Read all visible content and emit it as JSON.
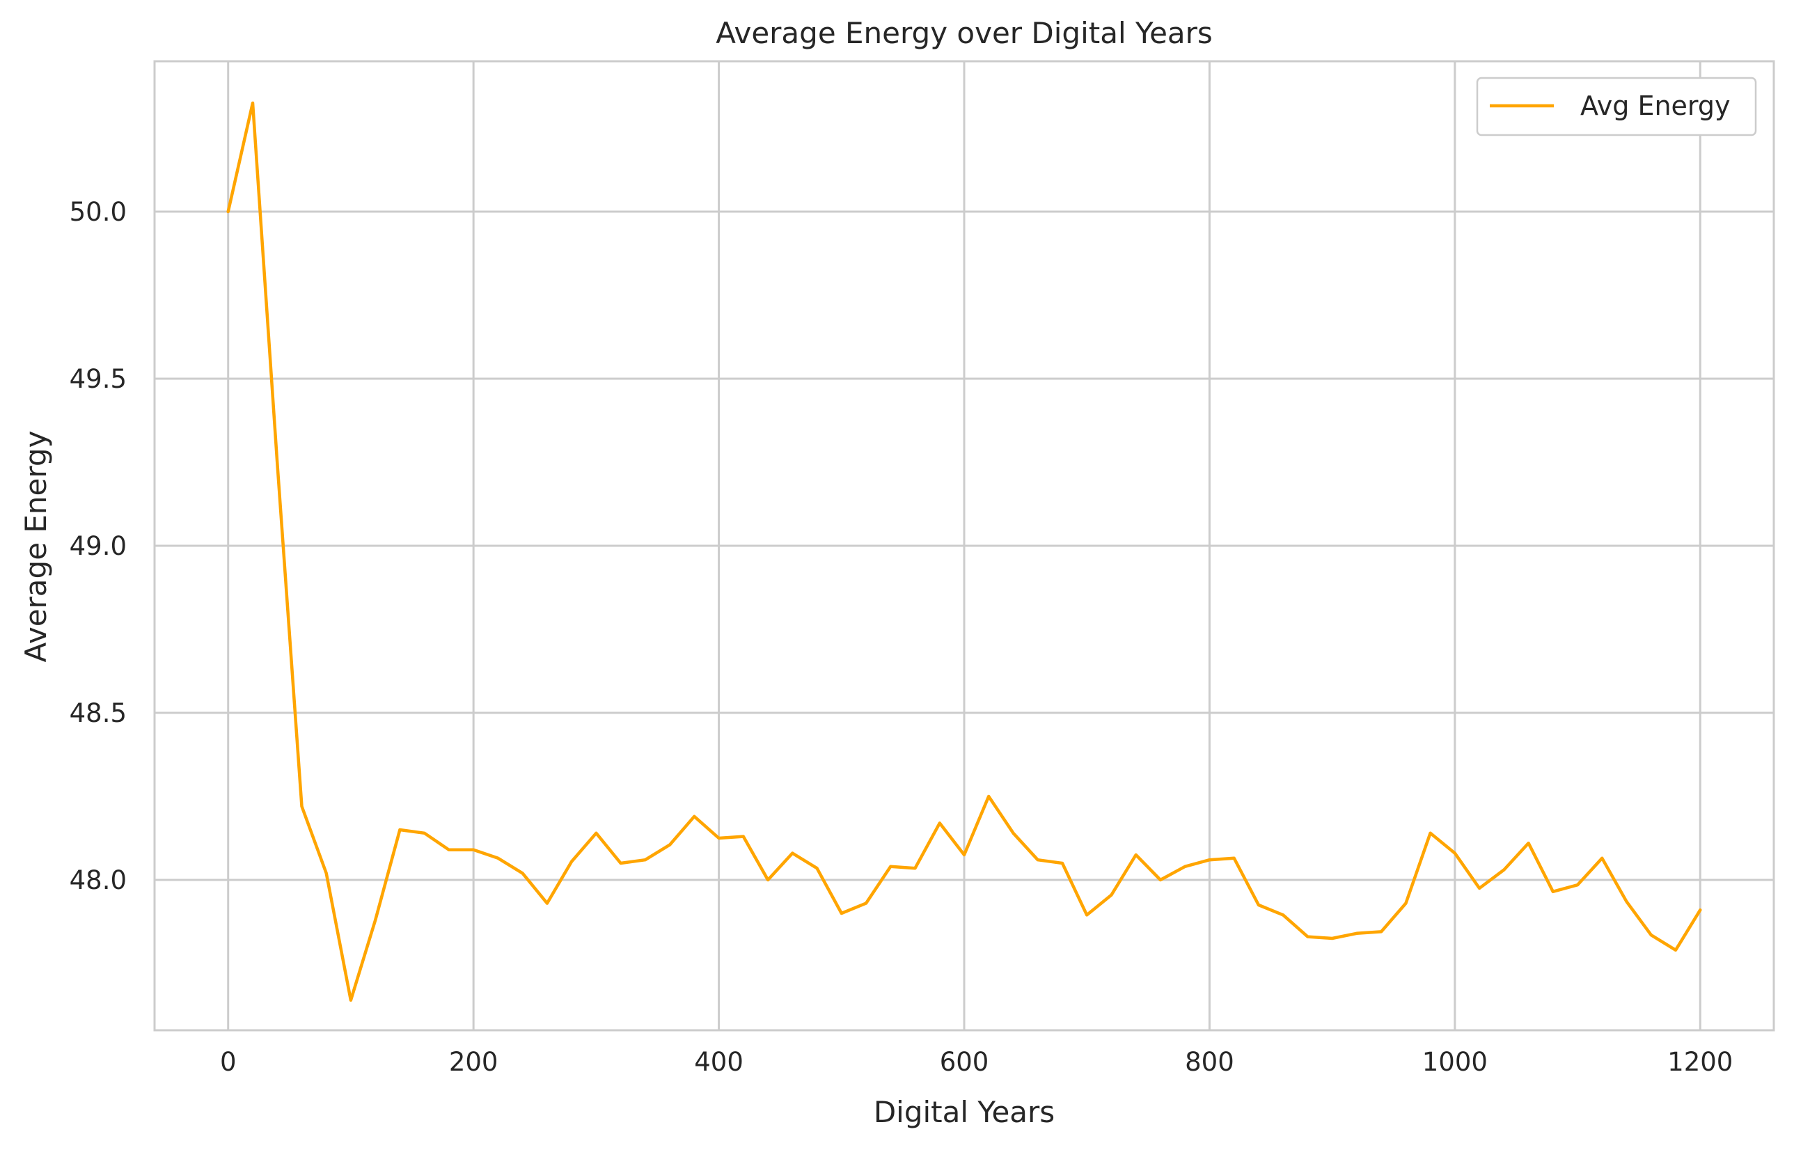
{
  "chart_data": {
    "type": "line",
    "title": "Average Energy over Digital Years",
    "xlabel": "Digital Years",
    "ylabel": "Average Energy",
    "xlim": [
      -60,
      1260
    ],
    "ylim": [
      47.55,
      50.45
    ],
    "xticks": [
      0,
      200,
      400,
      600,
      800,
      1000,
      1200
    ],
    "yticks": [
      48.0,
      48.5,
      49.0,
      49.5,
      50.0
    ],
    "xtick_labels": [
      "0",
      "200",
      "400",
      "600",
      "800",
      "1000",
      "1200"
    ],
    "ytick_labels": [
      "48.0",
      "48.5",
      "49.0",
      "49.5",
      "50.0"
    ],
    "grid": true,
    "legend_position": "top-right",
    "series": [
      {
        "name": "Avg Energy",
        "color": "#FFA500",
        "x": [
          0,
          20,
          40,
          60,
          80,
          100,
          120,
          140,
          160,
          180,
          200,
          220,
          240,
          260,
          280,
          300,
          320,
          340,
          360,
          380,
          400,
          420,
          440,
          460,
          480,
          500,
          520,
          540,
          560,
          580,
          600,
          620,
          640,
          660,
          680,
          700,
          720,
          740,
          760,
          780,
          800,
          820,
          840,
          860,
          880,
          900,
          920,
          940,
          960,
          980,
          1000,
          1020,
          1040,
          1060,
          1080,
          1100,
          1120,
          1140,
          1160,
          1180,
          1200
        ],
        "y": [
          50.0,
          50.325,
          49.25,
          48.22,
          48.02,
          47.64,
          47.88,
          48.15,
          48.14,
          48.09,
          48.09,
          48.065,
          48.02,
          47.93,
          48.055,
          48.14,
          48.05,
          48.06,
          48.105,
          48.19,
          48.125,
          48.13,
          48.0,
          48.08,
          48.035,
          47.9,
          47.93,
          48.04,
          48.035,
          48.17,
          48.075,
          48.25,
          48.14,
          48.06,
          48.05,
          47.895,
          47.955,
          48.075,
          48.0,
          48.04,
          48.06,
          48.065,
          47.925,
          47.895,
          47.83,
          47.825,
          47.84,
          47.845,
          47.93,
          48.14,
          48.08,
          47.975,
          48.03,
          48.11,
          47.965,
          47.985,
          48.065,
          47.935,
          47.835,
          47.79,
          47.91
        ]
      }
    ]
  }
}
